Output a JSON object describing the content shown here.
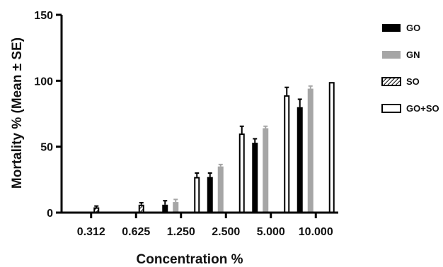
{
  "chart_data": {
    "type": "bar",
    "xlabel": "Concentration %",
    "ylabel": "Mortality % (Mean ± SE)",
    "ylim": [
      0,
      150
    ],
    "yticks": [
      0,
      50,
      100,
      150
    ],
    "grid": false,
    "legend_position": "right",
    "categories": [
      "0.312",
      "0.625",
      "1.250",
      "2.500",
      "5.000",
      "10.000"
    ],
    "series": [
      {
        "name": "GO",
        "fill": "solid",
        "color": "#000000",
        "values": [
          0,
          0,
          6,
          27,
          53,
          80
        ],
        "errors": [
          0,
          0,
          3,
          3,
          3,
          6
        ]
      },
      {
        "name": "GN",
        "fill": "solid",
        "color": "#a6a6a6",
        "values": [
          0,
          0,
          8,
          35,
          64,
          94
        ],
        "errors": [
          0,
          0,
          2,
          1.5,
          1.5,
          2
        ]
      },
      {
        "name": "SO",
        "fill": "hatched",
        "color": "#000000",
        "values": [
          4,
          6,
          0,
          0,
          0,
          0
        ],
        "errors": [
          1,
          1.5,
          0,
          0,
          0,
          0
        ]
      },
      {
        "name": "GO+SO",
        "fill": "open",
        "color": "#000000",
        "values": [
          0,
          0,
          27,
          60,
          89,
          99
        ],
        "errors": [
          0,
          0,
          3,
          5.5,
          6,
          0
        ]
      }
    ]
  }
}
